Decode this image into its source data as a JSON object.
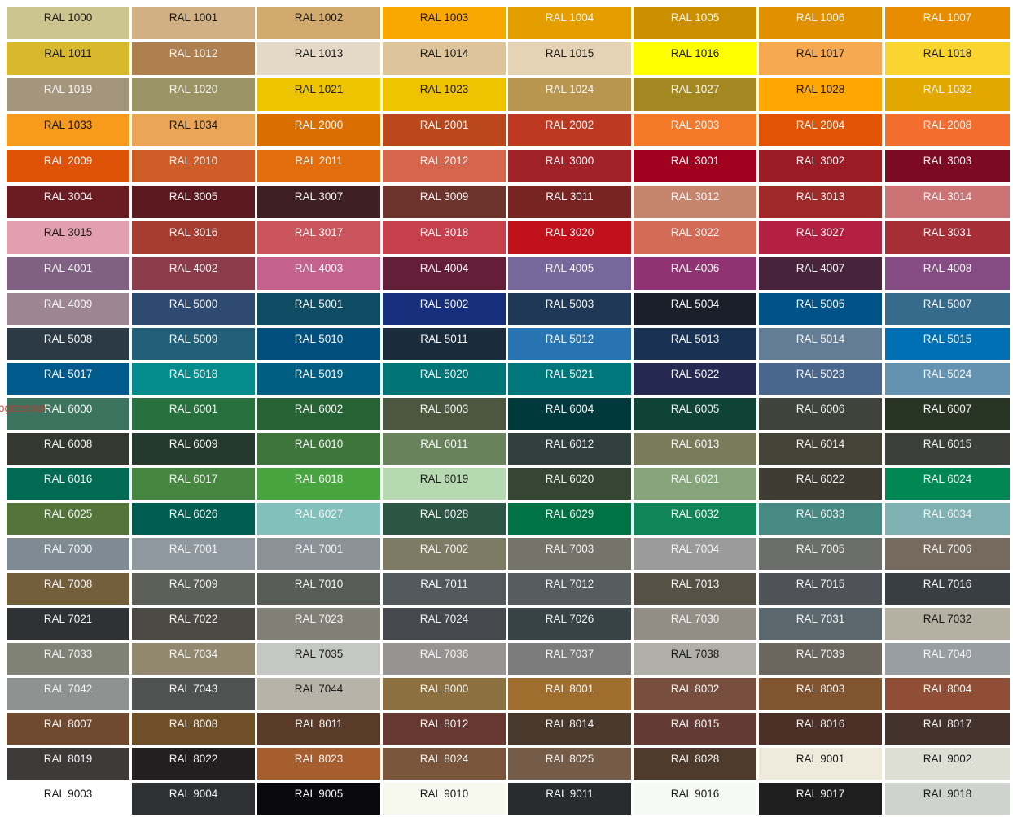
{
  "watermark": "ogrzewan",
  "rows": [
    [
      [
        "RAL 1000",
        "#CCC58F",
        1
      ],
      [
        "RAL 1001",
        "#D0B084",
        1
      ],
      [
        "RAL 1002",
        "#D2AA6D",
        1
      ],
      [
        "RAL 1003",
        "#F9A800",
        1
      ],
      [
        "RAL 1004",
        "#E49E00",
        0
      ],
      [
        "RAL 1005",
        "#CB8F00",
        0
      ],
      [
        "RAL 1006",
        "#E19000",
        0
      ],
      [
        "RAL 1007",
        "#E88C00",
        0
      ]
    ],
    [
      [
        "RAL 1011",
        "#D8B92D",
        1
      ],
      [
        "RAL 1012",
        "#AF804F",
        0
      ],
      [
        "RAL 1013",
        "#E3D9C6",
        1
      ],
      [
        "RAL 1014",
        "#DDC49A",
        1
      ],
      [
        "RAL 1015",
        "#E6D2B5",
        1
      ],
      [
        "RAL 1016",
        "#FFFF00",
        1
      ],
      [
        "RAL 1017",
        "#F6A950",
        1
      ],
      [
        "RAL 1018",
        "#FAD530",
        1
      ]
    ],
    [
      [
        "RAL 1019",
        "#A4957D",
        0
      ],
      [
        "RAL 1020",
        "#9A9464",
        0
      ],
      [
        "RAL 1021",
        "#EEC400",
        1
      ],
      [
        "RAL 1023",
        "#F0C300",
        1
      ],
      [
        "RAL 1024",
        "#B89650",
        0
      ],
      [
        "RAL 1027",
        "#A38720",
        0
      ],
      [
        "RAL 1028",
        "#FFA600",
        1
      ],
      [
        "RAL 1032",
        "#E2A800",
        0
      ]
    ],
    [
      [
        "RAL 1033",
        "#F89A1C",
        1
      ],
      [
        "RAL 1034",
        "#EBA557",
        1
      ],
      [
        "RAL 2000",
        "#DA6E00",
        0
      ],
      [
        "RAL 2001",
        "#BA481C",
        0
      ],
      [
        "RAL 2002",
        "#BF3922",
        0
      ],
      [
        "RAL 2003",
        "#F67829",
        0
      ],
      [
        "RAL 2004",
        "#E25304",
        0
      ],
      [
        "RAL 2008",
        "#F36D2F",
        0
      ]
    ],
    [
      [
        "RAL 2009",
        "#DE5308",
        0
      ],
      [
        "RAL 2010",
        "#D05D28",
        0
      ],
      [
        "RAL 2011",
        "#E26E0E",
        0
      ],
      [
        "RAL 2012",
        "#D5654D",
        0
      ],
      [
        "RAL 3000",
        "#A02128",
        0
      ],
      [
        "RAL 3001",
        "#A0001E",
        0
      ],
      [
        "RAL 3002",
        "#9B1C24",
        0
      ],
      [
        "RAL 3003",
        "#7D0A23",
        0
      ]
    ],
    [
      [
        "RAL 3004",
        "#6B1C23",
        0
      ],
      [
        "RAL 3005",
        "#59191F",
        0
      ],
      [
        "RAL 3007",
        "#3E2022",
        0
      ],
      [
        "RAL 3009",
        "#6D342D",
        0
      ],
      [
        "RAL 3011",
        "#782423",
        0
      ],
      [
        "RAL 3012",
        "#C5856D",
        0
      ],
      [
        "RAL 3013",
        "#9E2A2A",
        0
      ],
      [
        "RAL 3014",
        "#CB7375",
        0
      ]
    ],
    [
      [
        "RAL 3015",
        "#E2A0AE",
        1
      ],
      [
        "RAL 3016",
        "#A63D30",
        0
      ],
      [
        "RAL 3017",
        "#CB555D",
        0
      ],
      [
        "RAL 3018",
        "#C73F4A",
        0
      ],
      [
        "RAL 3020",
        "#C1121C",
        0
      ],
      [
        "RAL 3022",
        "#D36B56",
        0
      ],
      [
        "RAL 3027",
        "#B42041",
        0
      ],
      [
        "RAL 3031",
        "#A52E37",
        0
      ]
    ],
    [
      [
        "RAL 4001",
        "#816183",
        0
      ],
      [
        "RAL 4002",
        "#8D3C4B",
        0
      ],
      [
        "RAL 4003",
        "#C4618C",
        0
      ],
      [
        "RAL 4004",
        "#651E38",
        0
      ],
      [
        "RAL 4005",
        "#76689A",
        0
      ],
      [
        "RAL 4006",
        "#903373",
        0
      ],
      [
        "RAL 4007",
        "#47243C",
        0
      ],
      [
        "RAL 4008",
        "#844C82",
        0
      ]
    ],
    [
      [
        "RAL 4009",
        "#9D8692",
        0
      ],
      [
        "RAL 5000",
        "#2F4A71",
        0
      ],
      [
        "RAL 5001",
        "#0E4C64",
        0
      ],
      [
        "RAL 5002",
        "#162E7B",
        0
      ],
      [
        "RAL 5003",
        "#1F3855",
        0
      ],
      [
        "RAL 5004",
        "#191E28",
        0
      ],
      [
        "RAL 5005",
        "#005387",
        0
      ],
      [
        "RAL 5007",
        "#376B8C",
        0
      ]
    ],
    [
      [
        "RAL 5008",
        "#2B3A44",
        0
      ],
      [
        "RAL 5009",
        "#225F78",
        0
      ],
      [
        "RAL 5010",
        "#004F7C",
        0
      ],
      [
        "RAL 5011",
        "#1A2B3C",
        0
      ],
      [
        "RAL 5012",
        "#2874B2",
        0
      ],
      [
        "RAL 5013",
        "#193153",
        0
      ],
      [
        "RAL 5014",
        "#637D96",
        0
      ],
      [
        "RAL 5015",
        "#0070B4",
        0
      ]
    ],
    [
      [
        "RAL 5017",
        "#005B8C",
        0
      ],
      [
        "RAL 5018",
        "#048B8C",
        0
      ],
      [
        "RAL 5019",
        "#005E83",
        0
      ],
      [
        "RAL 5020",
        "#007577",
        0
      ],
      [
        "RAL 5021",
        "#00777A",
        0
      ],
      [
        "RAL 5022",
        "#252850",
        0
      ],
      [
        "RAL 5023",
        "#49678D",
        0
      ],
      [
        "RAL 5024",
        "#6493B1",
        0
      ]
    ],
    [
      [
        "RAL 6000",
        "#3C7460",
        0
      ],
      [
        "RAL 6001",
        "#28713E",
        0
      ],
      [
        "RAL 6002",
        "#276235",
        0
      ],
      [
        "RAL 6003",
        "#4B573E",
        0
      ],
      [
        "RAL 6004",
        "#00393B",
        0
      ],
      [
        "RAL 6005",
        "#0F4336",
        0
      ],
      [
        "RAL 6006",
        "#40433B",
        0
      ],
      [
        "RAL 6007",
        "#283424",
        0
      ]
    ],
    [
      [
        "RAL 6008",
        "#35382E",
        0
      ],
      [
        "RAL 6009",
        "#26392F",
        0
      ],
      [
        "RAL 6010",
        "#3E753B",
        0
      ],
      [
        "RAL 6011",
        "#68825B",
        0
      ],
      [
        "RAL 6012",
        "#31403D",
        0
      ],
      [
        "RAL 6013",
        "#797B5A",
        0
      ],
      [
        "RAL 6014",
        "#444337",
        0
      ],
      [
        "RAL 6015",
        "#3D403A",
        0
      ]
    ],
    [
      [
        "RAL 6016",
        "#026A52",
        0
      ],
      [
        "RAL 6017",
        "#468641",
        0
      ],
      [
        "RAL 6018",
        "#48A43F",
        0
      ],
      [
        "RAL 6019",
        "#B7D9B1",
        1
      ],
      [
        "RAL 6020",
        "#354733",
        0
      ],
      [
        "RAL 6021",
        "#86A47C",
        0
      ],
      [
        "RAL 6022",
        "#3E3C32",
        0
      ],
      [
        "RAL 6024",
        "#008754",
        0
      ]
    ],
    [
      [
        "RAL 6025",
        "#53753C",
        0
      ],
      [
        "RAL 6026",
        "#005D52",
        0
      ],
      [
        "RAL 6027",
        "#81C0BB",
        0
      ],
      [
        "RAL 6028",
        "#2D5546",
        0
      ],
      [
        "RAL 6029",
        "#007243",
        0
      ],
      [
        "RAL 6032",
        "#0F8558",
        0
      ],
      [
        "RAL 6033",
        "#478A84",
        0
      ],
      [
        "RAL 6034",
        "#7FB0B2",
        0
      ]
    ],
    [
      [
        "RAL 7000",
        "#7E8B92",
        0
      ],
      [
        "RAL 7001",
        "#8F999F",
        0
      ],
      [
        "RAL 7001",
        "#8A9297",
        0
      ],
      [
        "RAL 7002",
        "#7E7B64",
        0
      ],
      [
        "RAL 7003",
        "#75746A",
        0
      ],
      [
        "RAL 7004",
        "#9B9B9B",
        0
      ],
      [
        "RAL 7005",
        "#6C6E6B",
        0
      ],
      [
        "RAL 7006",
        "#766A5E",
        0
      ]
    ],
    [
      [
        "RAL 7008",
        "#745F3D",
        0
      ],
      [
        "RAL 7009",
        "#5D6058",
        0
      ],
      [
        "RAL 7010",
        "#585C56",
        0
      ],
      [
        "RAL 7011",
        "#52595D",
        0
      ],
      [
        "RAL 7012",
        "#575D5E",
        0
      ],
      [
        "RAL 7013",
        "#575044",
        0
      ],
      [
        "RAL 7015",
        "#4F5358",
        0
      ],
      [
        "RAL 7016",
        "#383E42",
        0
      ]
    ],
    [
      [
        "RAL 7021",
        "#2F3234",
        0
      ],
      [
        "RAL 7022",
        "#4C4A44",
        0
      ],
      [
        "RAL 7023",
        "#808076",
        0
      ],
      [
        "RAL 7024",
        "#45494E",
        0
      ],
      [
        "RAL 7026",
        "#374345",
        0
      ],
      [
        "RAL 7030",
        "#928E85",
        0
      ],
      [
        "RAL 7031",
        "#5B686D",
        0
      ],
      [
        "RAL 7032",
        "#B5B0A1",
        1
      ]
    ],
    [
      [
        "RAL 7033",
        "#7F8274",
        0
      ],
      [
        "RAL 7034",
        "#92886F",
        0
      ],
      [
        "RAL 7035",
        "#C5C7C4",
        1
      ],
      [
        "RAL 7036",
        "#979392",
        0
      ],
      [
        "RAL 7037",
        "#7A7B7A",
        0
      ],
      [
        "RAL 7038",
        "#B0B0A9",
        1
      ],
      [
        "RAL 7039",
        "#6B665E",
        0
      ],
      [
        "RAL 7040",
        "#989EA1",
        0
      ]
    ],
    [
      [
        "RAL 7042",
        "#8E9291",
        0
      ],
      [
        "RAL 7043",
        "#4F5250",
        0
      ],
      [
        "RAL 7044",
        "#B7B3A8",
        1
      ],
      [
        "RAL 8000",
        "#8D7040",
        0
      ],
      [
        "RAL 8001",
        "#9F6E2F",
        0
      ],
      [
        "RAL 8002",
        "#784F3F",
        0
      ],
      [
        "RAL 8003",
        "#80542F",
        0
      ],
      [
        "RAL 8004",
        "#8F4E35",
        0
      ]
    ],
    [
      [
        "RAL 8007",
        "#6F4A2F",
        0
      ],
      [
        "RAL 8008",
        "#6F4F28",
        0
      ],
      [
        "RAL 8011",
        "#5A3A29",
        0
      ],
      [
        "RAL 8012",
        "#673831",
        0
      ],
      [
        "RAL 8014",
        "#49392D",
        0
      ],
      [
        "RAL 8015",
        "#633A34",
        0
      ],
      [
        "RAL 8016",
        "#4C2F26",
        0
      ],
      [
        "RAL 8017",
        "#44322D",
        0
      ]
    ],
    [
      [
        "RAL 8019",
        "#3F3A3A",
        0
      ],
      [
        "RAL 8022",
        "#211F20",
        0
      ],
      [
        "RAL 8023",
        "#A65E2F",
        0
      ],
      [
        "RAL 8024",
        "#79553C",
        0
      ],
      [
        "RAL 8025",
        "#755C49",
        0
      ],
      [
        "RAL 8028",
        "#4E3B2B",
        0
      ],
      [
        "RAL 9001",
        "#EFEBDC",
        1
      ],
      [
        "RAL 9002",
        "#DDDED4",
        1
      ]
    ],
    [
      [
        "RAL 9003",
        "#FFFFFF",
        1
      ],
      [
        "RAL 9004",
        "#2E3032",
        0
      ],
      [
        "RAL 9005",
        "#0A0A0D",
        0
      ],
      [
        "RAL 9010",
        "#F7F9EF",
        1
      ],
      [
        "RAL 9011",
        "#292C2F",
        0
      ],
      [
        "RAL 9016",
        "#F7F9F6",
        1
      ],
      [
        "RAL 9017",
        "#1E1E1E",
        0
      ],
      [
        "RAL 9018",
        "#CFD3CD",
        1
      ]
    ]
  ]
}
